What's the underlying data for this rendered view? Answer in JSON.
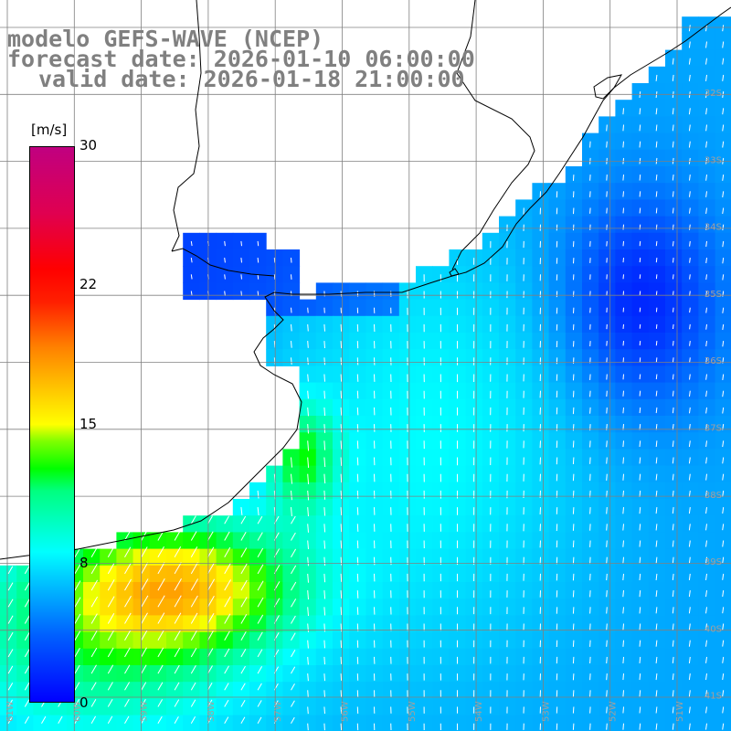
{
  "title": {
    "line1": "modelo GEFS-WAVE (NCEP)",
    "line2": "forecast date: 2026-01-10 06:00:00",
    "line3": "valid date: 2026-01-18 21:00:00"
  },
  "colorbar": {
    "unit": "[m/s]",
    "ticks": [
      "30",
      "22",
      "15",
      "8",
      "0"
    ],
    "tick_values": [
      30,
      22,
      15,
      8,
      0
    ],
    "range": [
      0,
      30
    ]
  },
  "lat_labels": [
    "32S",
    "33S",
    "34S",
    "35S",
    "36S",
    "37S",
    "38S",
    "39S",
    "40S",
    "41S"
  ],
  "lon_labels": [
    "61W",
    "60W",
    "59W",
    "58W",
    "57W",
    "56W",
    "55W",
    "54W",
    "53W",
    "52W",
    "51W"
  ],
  "colors": {
    "land": "#ffffff",
    "grid": "#808080",
    "coast": "#000000",
    "arrow": "#ffffff",
    "title": "#808080"
  }
}
